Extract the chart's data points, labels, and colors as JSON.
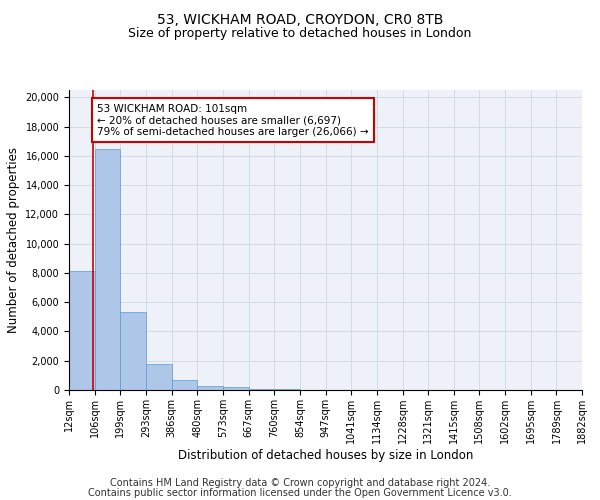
{
  "title1": "53, WICKHAM ROAD, CROYDON, CR0 8TB",
  "title2": "Size of property relative to detached houses in London",
  "xlabel": "Distribution of detached houses by size in London",
  "ylabel": "Number of detached properties",
  "bin_edges": [
    12,
    106,
    199,
    293,
    386,
    480,
    573,
    667,
    760,
    854,
    947,
    1041,
    1134,
    1228,
    1321,
    1415,
    1508,
    1602,
    1695,
    1789,
    1882
  ],
  "bar_heights": [
    8100,
    16500,
    5300,
    1800,
    700,
    300,
    200,
    100,
    50,
    0,
    0,
    0,
    0,
    0,
    0,
    0,
    0,
    0,
    0,
    0
  ],
  "bar_color": "#aec6e8",
  "bar_edge_color": "#5a9ad5",
  "grid_color": "#d0dce8",
  "background_color": "#eef2f8",
  "red_line_x": 101,
  "annotation_line1": "53 WICKHAM ROAD: 101sqm",
  "annotation_line2": "← 20% of detached houses are smaller (6,697)",
  "annotation_line3": "79% of semi-detached houses are larger (26,066) →",
  "annotation_box_color": "#ffffff",
  "annotation_box_edge": "#cc0000",
  "annotation_text_color": "#000000",
  "red_line_color": "#cc0000",
  "ylim": [
    0,
    20500
  ],
  "yticks": [
    0,
    2000,
    4000,
    6000,
    8000,
    10000,
    12000,
    14000,
    16000,
    18000,
    20000
  ],
  "footer1": "Contains HM Land Registry data © Crown copyright and database right 2024.",
  "footer2": "Contains public sector information licensed under the Open Government Licence v3.0.",
  "title1_fontsize": 10,
  "title2_fontsize": 9,
  "axis_label_fontsize": 8.5,
  "tick_fontsize": 7,
  "annotation_fontsize": 7.5,
  "footer_fontsize": 7
}
